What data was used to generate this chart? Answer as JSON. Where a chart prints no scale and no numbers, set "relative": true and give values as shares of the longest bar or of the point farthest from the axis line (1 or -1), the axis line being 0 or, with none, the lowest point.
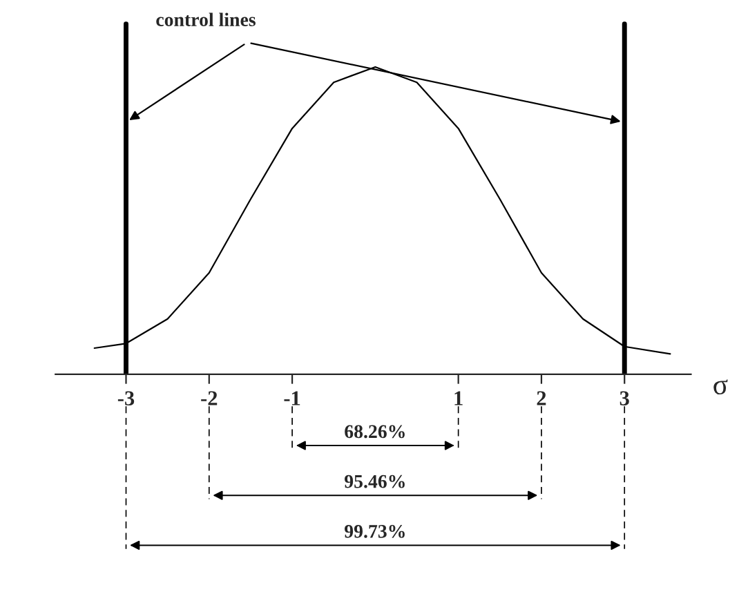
{
  "chart_data": {
    "type": "line",
    "relative": true,
    "xlabel": "σ",
    "color": "#000000",
    "x": [
      -3.38,
      -3.0,
      -2.5,
      -2.0,
      -1.5,
      -1.0,
      -0.5,
      0.0,
      0.5,
      1.0,
      1.5,
      2.0,
      2.5,
      3.0,
      3.55
    ],
    "values": [
      0.085,
      0.1,
      0.18,
      0.33,
      0.57,
      0.8,
      0.95,
      1.0,
      0.95,
      0.8,
      0.57,
      0.33,
      0.18,
      0.09,
      0.066
    ],
    "xlim": [
      -3.85,
      3.8
    ],
    "xticks": [
      -3,
      -2,
      -1,
      1,
      2,
      3
    ],
    "ref_lines": [
      {
        "axis": "x",
        "value": -3,
        "label": "control lines",
        "color": "#000000"
      },
      {
        "axis": "x",
        "value": 3,
        "color": "#000000"
      }
    ],
    "annotations": [
      "68.26%",
      "95.46%",
      "99.73%"
    ],
    "grid": false,
    "line_style": "solid",
    "marker": "none"
  }
}
